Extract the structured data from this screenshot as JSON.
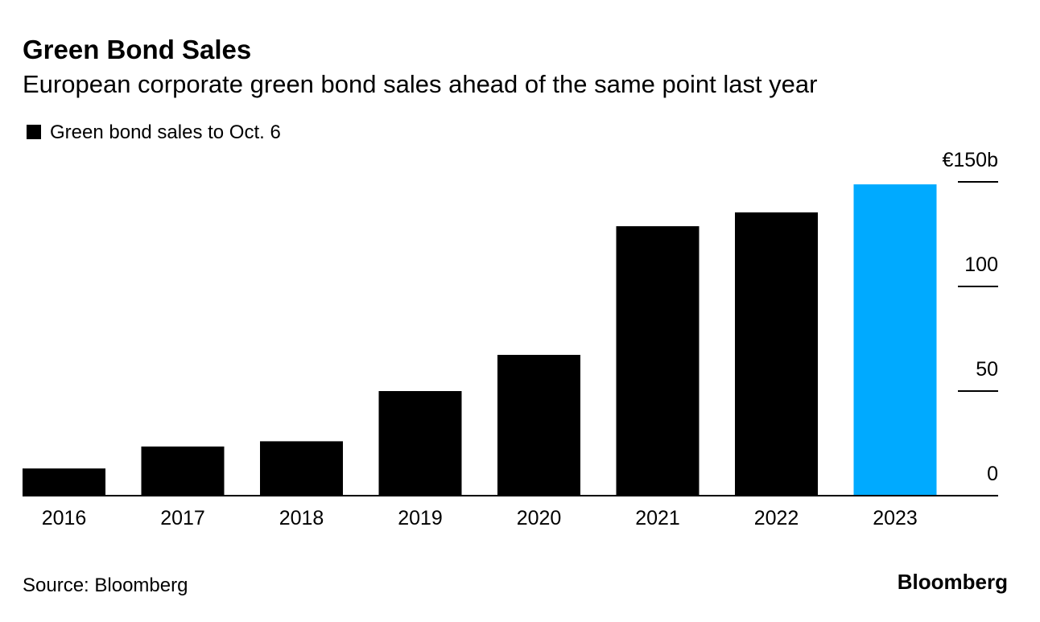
{
  "chart_data": {
    "type": "bar",
    "title": "Green Bond Sales",
    "subtitle": "European corporate green bond sales ahead of the same point last year",
    "categories": [
      "2016",
      "2017",
      "2018",
      "2019",
      "2020",
      "2021",
      "2022",
      "2023"
    ],
    "series": [
      {
        "name": "Green bond sales to Oct. 6",
        "color": "#000000",
        "colors": [
          "#000000",
          "#000000",
          "#000000",
          "#000000",
          "#000000",
          "#000000",
          "#000000",
          "#00aaff"
        ],
        "values": [
          13,
          23.5,
          26,
          50,
          67.3,
          128.8,
          135.4,
          148.8
        ]
      }
    ],
    "ylim": [
      0,
      150
    ],
    "yticks": [
      0,
      50,
      100,
      {
        "value": 150,
        "label": "€150b"
      }
    ],
    "source": "Source: Bloomberg",
    "brand": "Bloomberg"
  }
}
